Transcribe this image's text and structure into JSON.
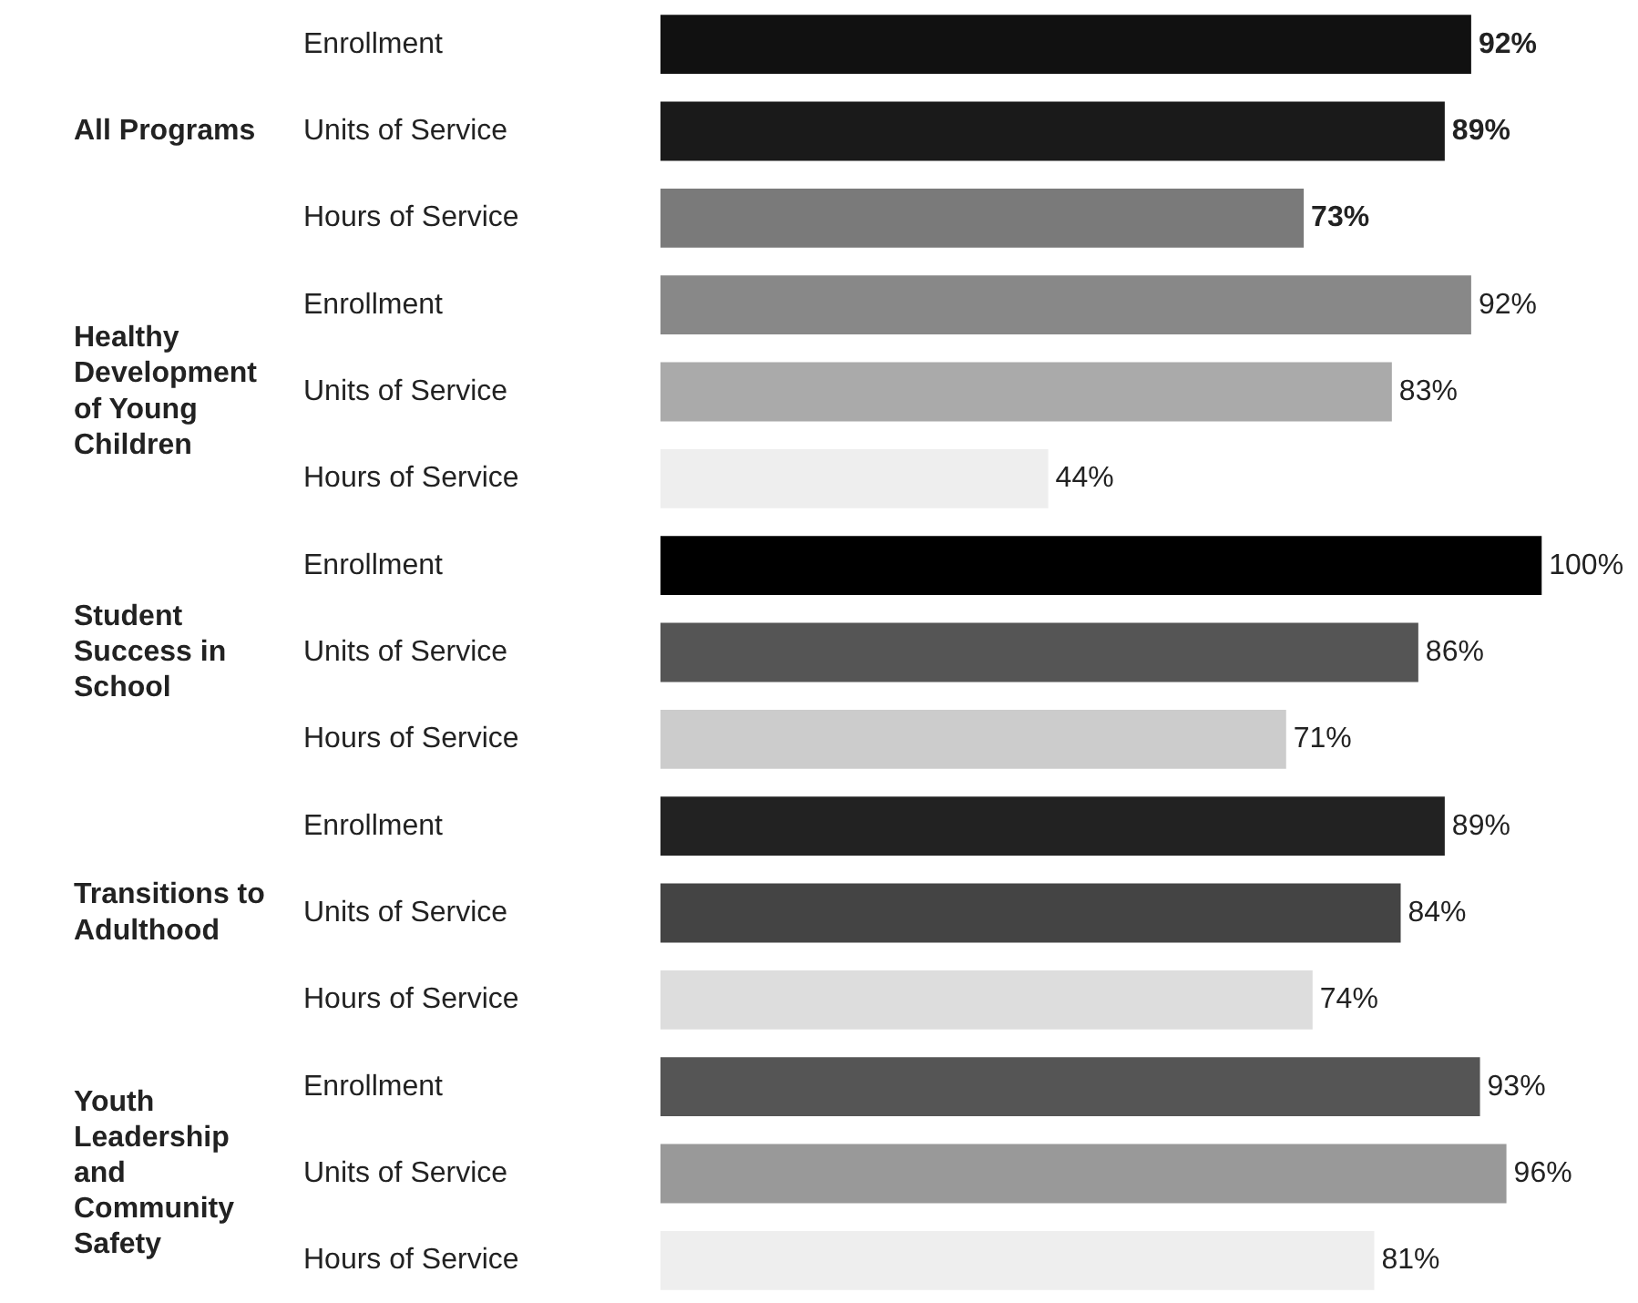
{
  "chart_data": {
    "type": "bar",
    "orientation": "horizontal",
    "categories": [
      "Enrollment",
      "Units of Service",
      "Hours of Service",
      "Enrollment",
      "Units of Service",
      "Hours of Service",
      "Enrollment",
      "Units of Service",
      "Hours of Service",
      "Enrollment",
      "Units of Service",
      "Hours of Service",
      "Enrollment",
      "Units of Service",
      "Hours of Service"
    ],
    "values": [
      92,
      89,
      73,
      92,
      83,
      44,
      100,
      86,
      71,
      89,
      84,
      74,
      93,
      96,
      81
    ],
    "value_labels": [
      "92%",
      "89%",
      "73%",
      "92%",
      "83%",
      "44%",
      "100%",
      "86%",
      "71%",
      "89%",
      "84%",
      "74%",
      "93%",
      "96%",
      "81%"
    ],
    "colors": [
      "#111111",
      "#1a1a1a",
      "#7a7a7a",
      "#888888",
      "#aaaaaa",
      "#eeeeee",
      "#000000",
      "#555555",
      "#cccccc",
      "#222222",
      "#444444",
      "#dddddd",
      "#555555",
      "#999999",
      "#eeeeee"
    ],
    "annotations": [
      "All Programs",
      "Healthy\nDevelopment\nof Young\nChildren",
      "Student\nSuccess in\nSchool",
      "Transitions to\nAdulthood",
      "Youth\nLeadership\nand\nCommunity\nSafety"
    ],
    "tick_labels": false
  }
}
